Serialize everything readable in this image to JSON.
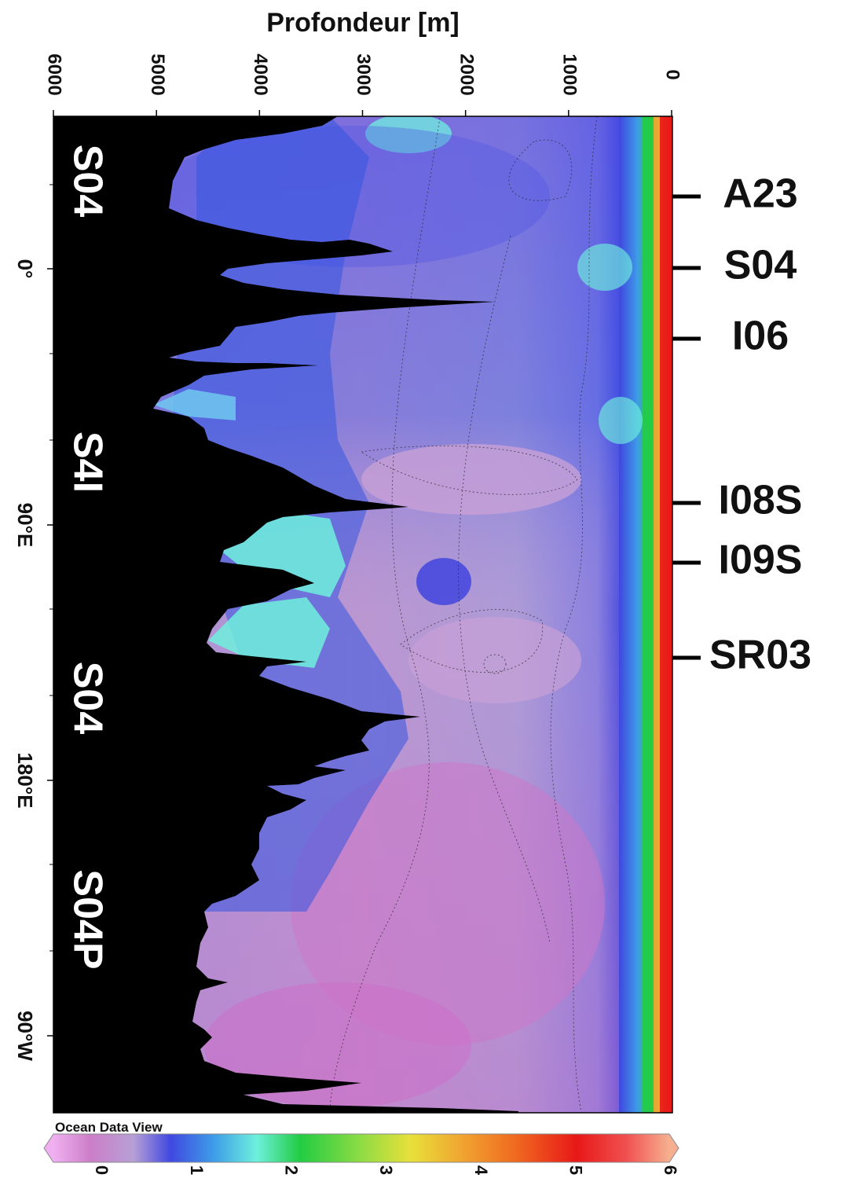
{
  "chart_data": {
    "type": "heatmap",
    "title": "",
    "y_axis": {
      "label": "Profondeur [m]",
      "ticks": [
        6000,
        5000,
        4000,
        3000,
        2000,
        1000,
        0
      ],
      "range": [
        6000,
        0
      ]
    },
    "x_axis": {
      "ticks": [
        "0°",
        "90°E",
        "180°E",
        "90°W"
      ],
      "description": "longitude along Southern Ocean section"
    },
    "sections": [
      "S04",
      "S4I",
      "S04",
      "S04P"
    ],
    "crossing_lines": [
      "A23",
      "S04",
      "I06",
      "I08S",
      "I09S",
      "SR03"
    ],
    "colorbar": {
      "ticks": [
        0,
        1,
        2,
        3,
        4,
        5,
        6
      ],
      "range": [
        0,
        6
      ],
      "label": "Ocean Data View"
    },
    "colors": {
      "seafloor": "#000000",
      "cmap": [
        "#f0b0f0",
        "#cc7ec8",
        "#b7a0d6",
        "#6f6ee2",
        "#3a40e0",
        "#3e9ce8",
        "#6ef0dc",
        "#22cc44",
        "#8fdc44",
        "#e8e03a",
        "#f0a030",
        "#f06a20",
        "#e81818",
        "#f6b090"
      ]
    }
  }
}
